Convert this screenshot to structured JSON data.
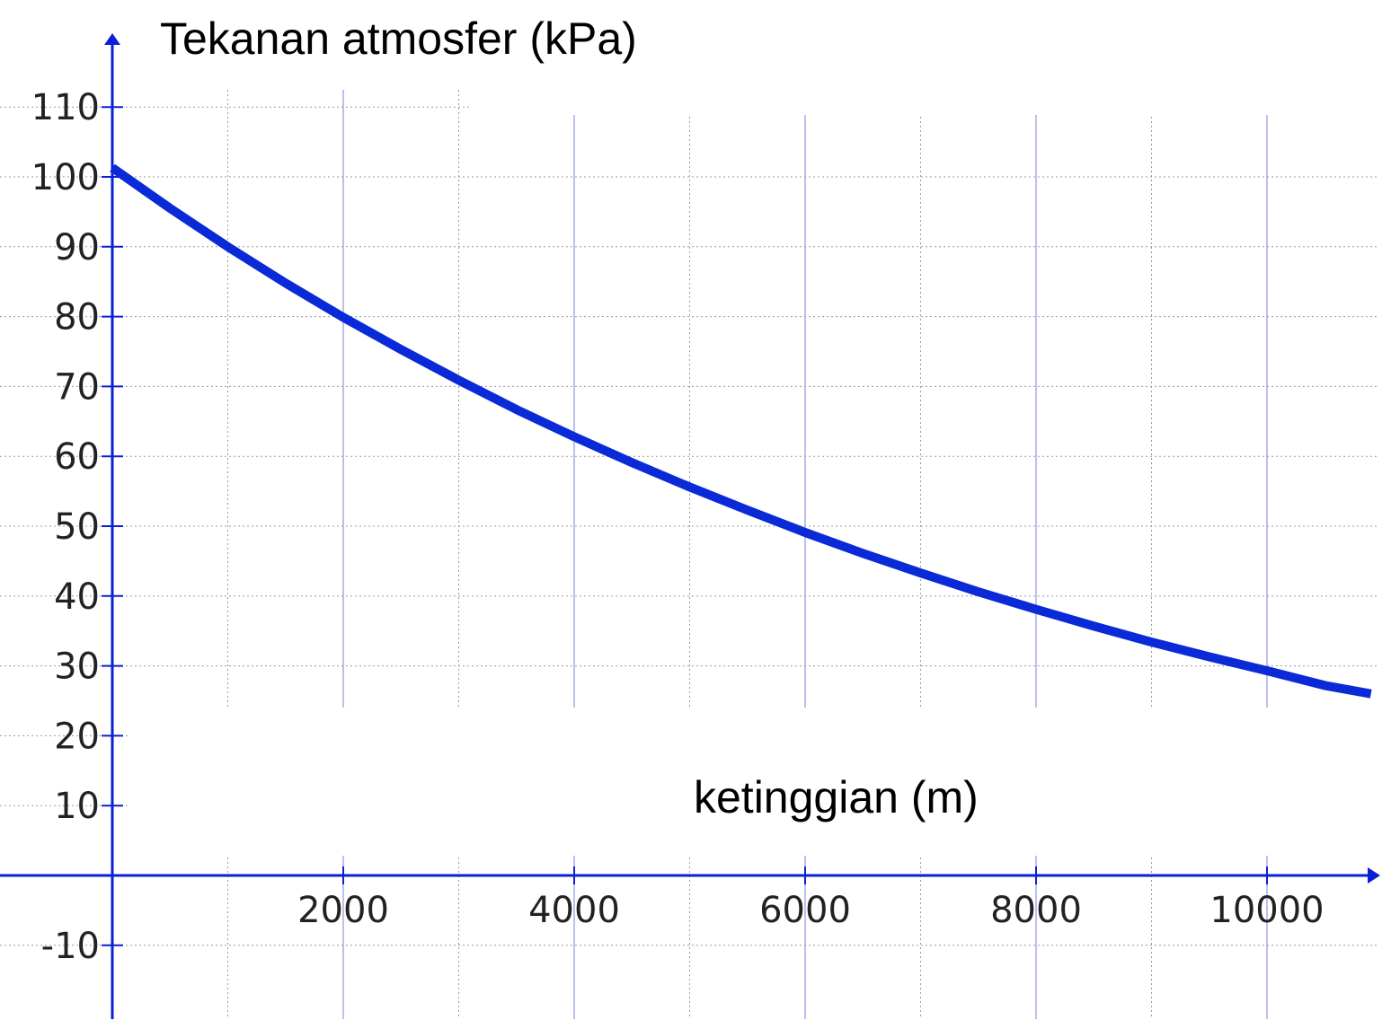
{
  "colors": {
    "axis": "#0a1fd6",
    "curve": "#0a2ad8",
    "grid_major": "#aab0ec",
    "grid_minor": "#9a9a9a",
    "text": "#000000"
  },
  "chart_data": {
    "type": "line",
    "ylabel": "Tekanan atmosfer (kPa)",
    "xlabel": "ketinggian (m)",
    "xlim": [
      0,
      10900
    ],
    "ylim": [
      -20,
      110
    ],
    "x_ticks": [
      2000,
      4000,
      6000,
      8000,
      10000
    ],
    "y_ticks": [
      110,
      100,
      90,
      80,
      70,
      60,
      50,
      40,
      30,
      20,
      10,
      -10
    ],
    "grid": true,
    "series": [
      {
        "x": [
          0,
          500,
          1000,
          1500,
          2000,
          2500,
          3000,
          3500,
          4000,
          4500,
          5000,
          5500,
          6000,
          6500,
          7000,
          7500,
          8000,
          8500,
          9000,
          9500,
          10000,
          10500,
          10900
        ],
        "y": [
          101.3,
          95.5,
          90.0,
          84.8,
          79.9,
          75.3,
          70.9,
          66.7,
          62.8,
          59.1,
          55.6,
          52.3,
          49.1,
          46.1,
          43.3,
          40.6,
          38.1,
          35.7,
          33.4,
          31.3,
          29.3,
          27.2,
          26.0
        ]
      }
    ]
  }
}
